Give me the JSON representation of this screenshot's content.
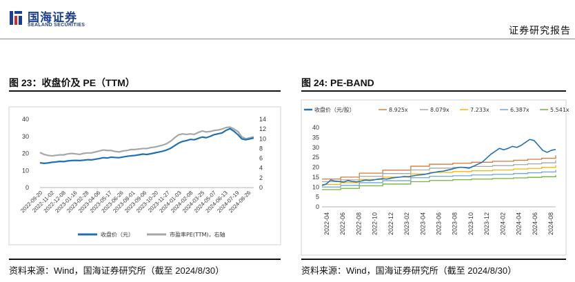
{
  "header": {
    "brand_cn": "国海证券",
    "brand_en": "SEALAND SECURITIES",
    "report_type": "证券研究报告"
  },
  "left_panel": {
    "title": "图 23：收盘价及 PE（TTM）",
    "source": "资料来源：Wind，国海证券研究所（截至 2024/8/30）"
  },
  "right_panel": {
    "title": "图 24:    PE-BAND",
    "source": "资料来源：Wind，国海证券研究所（截至 2024/8/30）"
  },
  "colors": {
    "brand": "#1b3f8f",
    "close": "#1f6fb5",
    "pe": "#a6a6a6",
    "band_8925": "#d47a3a",
    "band_8079": "#a6a6a6",
    "band_7233": "#f2b705",
    "band_6387": "#6aa6d9",
    "band_5541": "#6fb33a"
  },
  "chart_data": [
    {
      "type": "line",
      "title": "",
      "xlabel": "",
      "ylabel": "",
      "y_left_lim": [
        0,
        40
      ],
      "y_left_ticks": [
        "0",
        "10",
        "20",
        "30",
        "40"
      ],
      "y_right_lim": [
        0,
        14
      ],
      "y_right_ticks": [
        "0",
        "2",
        "4",
        "6",
        "8",
        "10",
        "12",
        "14"
      ],
      "x_ticks": [
        "2022-09-20",
        "2022-11-02",
        "2022-12-08",
        "2023-01-16",
        "2023-02-28",
        "2023-04-06",
        "2023-05-17",
        "2023-06-26",
        "2023-08-01",
        "2023-09-06",
        "2023-10-20",
        "2023-11-27",
        "2024-01-03",
        "2024-02-08",
        "2024-03-25",
        "2024-05-07",
        "2024-06-13",
        "2024-07-19",
        "2024-08-26"
      ],
      "grid": false,
      "legend_position": "bottom",
      "series": [
        {
          "name": "收盘价（元）",
          "axis": "left",
          "values": [
            14.5,
            14.2,
            14.4,
            14.8,
            15.0,
            15.3,
            15.2,
            15.6,
            15.8,
            15.9,
            15.8,
            16.0,
            16.3,
            16.2,
            16.6,
            17.0,
            17.5,
            17.3,
            17.8,
            17.6,
            17.5,
            17.9,
            18.3,
            18.6,
            18.8,
            19.2,
            19.6,
            19.4,
            19.8,
            20.3,
            20.8,
            21.3,
            22.0,
            23.0,
            24.5,
            26.0,
            27.0,
            27.5,
            28.2,
            28.0,
            28.8,
            29.6,
            29.2,
            30.0,
            31.0,
            31.5,
            32.0,
            33.5,
            34.5,
            33.0,
            31.0,
            28.5,
            28.0,
            28.5,
            29.0
          ]
        },
        {
          "name": "市盈率PE(TTM)，右轴",
          "axis": "right",
          "values": [
            7.2,
            6.8,
            6.6,
            6.5,
            6.6,
            6.7,
            6.7,
            6.9,
            7.0,
            6.9,
            6.8,
            7.0,
            7.1,
            7.1,
            7.3,
            7.5,
            7.7,
            7.6,
            7.6,
            7.4,
            7.3,
            7.5,
            7.6,
            7.8,
            7.8,
            7.9,
            8.0,
            8.0,
            8.2,
            8.3,
            8.5,
            8.7,
            9.0,
            9.5,
            10.2,
            10.8,
            11.0,
            10.9,
            11.0,
            10.9,
            11.3,
            11.6,
            11.4,
            11.5,
            11.7,
            11.8,
            12.0,
            12.3,
            12.4,
            12.0,
            11.5,
            10.4,
            10.0,
            10.2,
            10.4
          ]
        }
      ]
    },
    {
      "type": "line",
      "title": "",
      "xlabel": "",
      "ylabel": "",
      "ylim": [
        0,
        40
      ],
      "y_ticks": [
        "0",
        "5",
        "10",
        "15",
        "20",
        "25",
        "30",
        "35",
        "40"
      ],
      "x_ticks": [
        "2022-04",
        "2022-06",
        "2022-08",
        "2022-10",
        "2022-12",
        "2023-02",
        "2023-04",
        "2023-06",
        "2023-08",
        "2023-10",
        "2023-12",
        "2024-02",
        "2024-04",
        "2024-06",
        "2024-08"
      ],
      "grid": false,
      "legend_position": "top",
      "band_steps": [
        0,
        0.08,
        0.16,
        0.26,
        0.38,
        0.46,
        0.56,
        0.64,
        0.73,
        0.82,
        0.88,
        0.94,
        1.0
      ],
      "series": [
        {
          "name": "收盘价（元/股）",
          "values": [
            10.8,
            11.5,
            13.5,
            13.0,
            12.8,
            12.5,
            13.2,
            12.8,
            12.6,
            13.0,
            13.5,
            13.3,
            13.6,
            14.0,
            14.2,
            14.0,
            14.5,
            14.8,
            15.0,
            15.3,
            15.2,
            15.6,
            16.0,
            16.2,
            16.5,
            17.0,
            17.4,
            17.8,
            18.0,
            18.5,
            19.0,
            19.6,
            20.0,
            19.8,
            19.5,
            20.5,
            21.5,
            22.5,
            24.5,
            26.5,
            28.0,
            29.5,
            28.8,
            29.5,
            30.5,
            30.0,
            31.0,
            32.5,
            34.0,
            33.5,
            31.0,
            28.5,
            27.5,
            28.5,
            29.0
          ]
        },
        {
          "name": "8.925x",
          "values": [
            14.0,
            15.0,
            17.0,
            18.5,
            20.5,
            21.5,
            22.0,
            22.5,
            23.0,
            23.5,
            24.0,
            24.5,
            26.0
          ]
        },
        {
          "name": "8.079x",
          "values": [
            12.7,
            13.6,
            15.4,
            16.8,
            18.6,
            19.5,
            19.9,
            20.4,
            20.8,
            21.3,
            21.7,
            22.2,
            23.5
          ]
        },
        {
          "name": "7.233x",
          "values": [
            11.3,
            12.2,
            13.8,
            15.0,
            16.6,
            17.4,
            17.8,
            18.2,
            18.6,
            19.1,
            19.4,
            19.9,
            21.0
          ]
        },
        {
          "name": "6.387x",
          "values": [
            10.0,
            10.8,
            12.2,
            13.2,
            14.7,
            15.4,
            15.7,
            16.1,
            16.4,
            16.8,
            17.2,
            17.6,
            18.6
          ]
        },
        {
          "name": "5.541x",
          "values": [
            8.7,
            9.3,
            10.6,
            11.5,
            12.7,
            13.3,
            13.7,
            14.0,
            14.3,
            14.6,
            14.9,
            15.2,
            16.1
          ]
        }
      ]
    }
  ]
}
